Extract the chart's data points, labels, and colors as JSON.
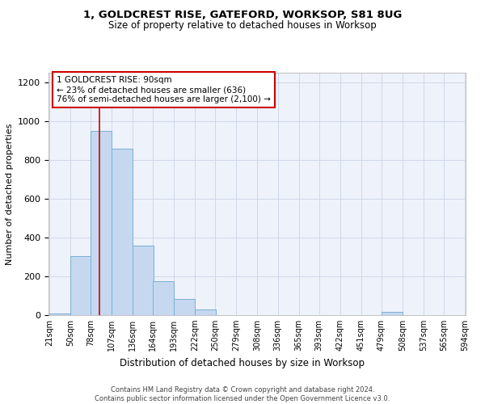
{
  "title1": "1, GOLDCREST RISE, GATEFORD, WORKSOP, S81 8UG",
  "title2": "Size of property relative to detached houses in Worksop",
  "xlabel": "Distribution of detached houses by size in Worksop",
  "ylabel": "Number of detached properties",
  "bar_color": "#c5d8f0",
  "bar_edge_color": "#7aafd4",
  "bar_left_edges": [
    21,
    50,
    78,
    107,
    136,
    164,
    193,
    222,
    250,
    279,
    308,
    336,
    365,
    393,
    422,
    451,
    479,
    508,
    537,
    565
  ],
  "bar_heights": [
    10,
    305,
    950,
    860,
    360,
    175,
    85,
    30,
    0,
    0,
    0,
    0,
    0,
    0,
    0,
    0,
    15,
    0,
    0,
    0
  ],
  "bin_width": 29,
  "ylim": [
    0,
    1250
  ],
  "yticks": [
    0,
    200,
    400,
    600,
    800,
    1000,
    1200
  ],
  "xlim_min": 21,
  "xlim_max": 594,
  "property_line_x": 90,
  "property_line_color": "#cc0000",
  "annotation_text": "1 GOLDCREST RISE: 90sqm\n← 23% of detached houses are smaller (636)\n76% of semi-detached houses are larger (2,100) →",
  "annotation_box_color": "#ffffff",
  "annotation_box_edge": "#cc0000",
  "footer_text": "Contains HM Land Registry data © Crown copyright and database right 2024.\nContains public sector information licensed under the Open Government Licence v3.0.",
  "tick_labels": [
    "21sqm",
    "50sqm",
    "78sqm",
    "107sqm",
    "136sqm",
    "164sqm",
    "193sqm",
    "222sqm",
    "250sqm",
    "279sqm",
    "308sqm",
    "336sqm",
    "365sqm",
    "393sqm",
    "422sqm",
    "451sqm",
    "479sqm",
    "508sqm",
    "537sqm",
    "565sqm",
    "594sqm"
  ],
  "tick_positions": [
    21,
    50,
    78,
    107,
    136,
    164,
    193,
    222,
    250,
    279,
    308,
    336,
    365,
    393,
    422,
    451,
    479,
    508,
    537,
    565,
    594
  ],
  "background_color": "#eef2fb",
  "grid_color": "#d0d8e8",
  "title1_fontsize": 9.5,
  "title2_fontsize": 8.5,
  "ylabel_fontsize": 8,
  "xlabel_fontsize": 8.5,
  "tick_fontsize": 7,
  "annotation_fontsize": 7.5,
  "footer_fontsize": 6
}
